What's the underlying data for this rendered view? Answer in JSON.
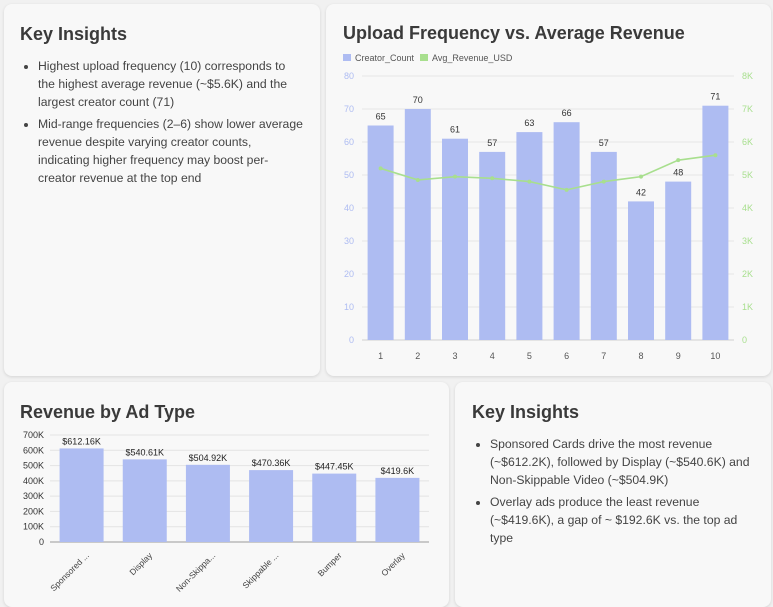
{
  "top_insights": {
    "title": "Key Insights",
    "items": [
      "Highest upload frequency (10) corresponds to the highest average revenue (~$5.6K) and the largest creator count (71)",
      "Mid-range frequencies (2–6) show lower average revenue despite varying creator counts, indicating higher frequency may boost per-creator revenue at the top end"
    ]
  },
  "bottom_insights": {
    "title": "Key Insights",
    "items": [
      "Sponsored Cards drive the most revenue (~$612.2K), followed by Display (~$540.6K) and Non-Skippable Video (~$504.9K)",
      "Overlay ads produce the least revenue (~$419.6K), a gap of ~ $192.6K vs. the top ad type"
    ]
  },
  "colors": {
    "bar": "#aebcf2",
    "line": "#a8df8e",
    "axis_right": "#a8df8e"
  },
  "chart_data": [
    {
      "type": "bar",
      "title": "Upload Frequency vs. Average Revenue",
      "categories": [
        "1",
        "2",
        "3",
        "4",
        "5",
        "6",
        "7",
        "8",
        "9",
        "10"
      ],
      "legend_position": "top-left",
      "series": [
        {
          "name": "Creator_Count",
          "type": "bar",
          "values": [
            65,
            70,
            61,
            57,
            63,
            66,
            57,
            42,
            48,
            71
          ],
          "data_labels": [
            "65",
            "70",
            "61",
            "57",
            "63",
            "66",
            "57",
            "42",
            "48",
            "71"
          ]
        },
        {
          "name": "Avg_Revenue_USD",
          "type": "line",
          "axis": "right",
          "values": [
            5200,
            4850,
            4950,
            4900,
            4800,
            4550,
            4800,
            4950,
            5450,
            5600
          ]
        }
      ],
      "y_left": {
        "range": [
          0,
          80
        ],
        "ticks": [
          "0",
          "10",
          "20",
          "30",
          "40",
          "50",
          "60",
          "70",
          "80"
        ]
      },
      "y_right": {
        "range": [
          0,
          8000
        ],
        "ticks": [
          "0",
          "1K",
          "2K",
          "3K",
          "4K",
          "5K",
          "6K",
          "7K",
          "8K"
        ]
      },
      "grid": true
    },
    {
      "type": "bar",
      "title": "Revenue by Ad Type",
      "categories": [
        "Sponsored ...",
        "Display",
        "Non-Skippa...",
        "Skippable ...",
        "Bumper",
        "Overlay"
      ],
      "series": [
        {
          "values": [
            612160,
            540610,
            504920,
            470360,
            447450,
            419600
          ],
          "data_labels": [
            "$612.16K",
            "$540.61K",
            "$504.92K",
            "$470.36K",
            "$447.45K",
            "$419.6K"
          ]
        }
      ],
      "y": {
        "range": [
          0,
          700000
        ],
        "ticks": [
          "0",
          "100K",
          "200K",
          "300K",
          "400K",
          "500K",
          "600K",
          "700K"
        ]
      },
      "grid": true
    }
  ]
}
